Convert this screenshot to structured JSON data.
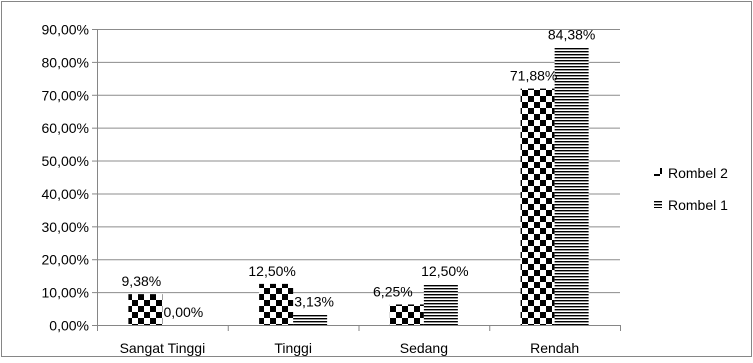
{
  "chart_data": {
    "type": "bar",
    "title": "",
    "xlabel": "",
    "ylabel": "",
    "categories": [
      "Sangat Tinggi",
      "Tinggi",
      "Sedang",
      "Rendah"
    ],
    "series": [
      {
        "name": "Rombel 2",
        "pattern": "checker",
        "values": [
          9.38,
          12.5,
          6.25,
          71.88
        ],
        "labels": [
          "9,38%",
          "12,50%",
          "6,25%",
          "71,88%"
        ]
      },
      {
        "name": "Rombel 1",
        "pattern": "horizontal-lines",
        "values": [
          0.0,
          3.13,
          12.5,
          84.38
        ],
        "labels": [
          "0,00%",
          "3,13%",
          "12,50%",
          "84,38%"
        ]
      }
    ],
    "ylim": [
      0,
      90
    ],
    "yticks": [
      0,
      10,
      20,
      30,
      40,
      50,
      60,
      70,
      80,
      90
    ],
    "ytick_labels": [
      "0,00%",
      "10,00%",
      "20,00%",
      "30,00%",
      "40,00%",
      "50,00%",
      "60,00%",
      "70,00%",
      "80,00%",
      "90,00%"
    ],
    "grid": true,
    "legend": {
      "placement": "right",
      "order": [
        "Rombel 2",
        "Rombel 1"
      ]
    },
    "colors": {
      "bar": "#000000",
      "grid": "#8c8c8c",
      "axis": "#868686",
      "border": "#868686"
    }
  }
}
